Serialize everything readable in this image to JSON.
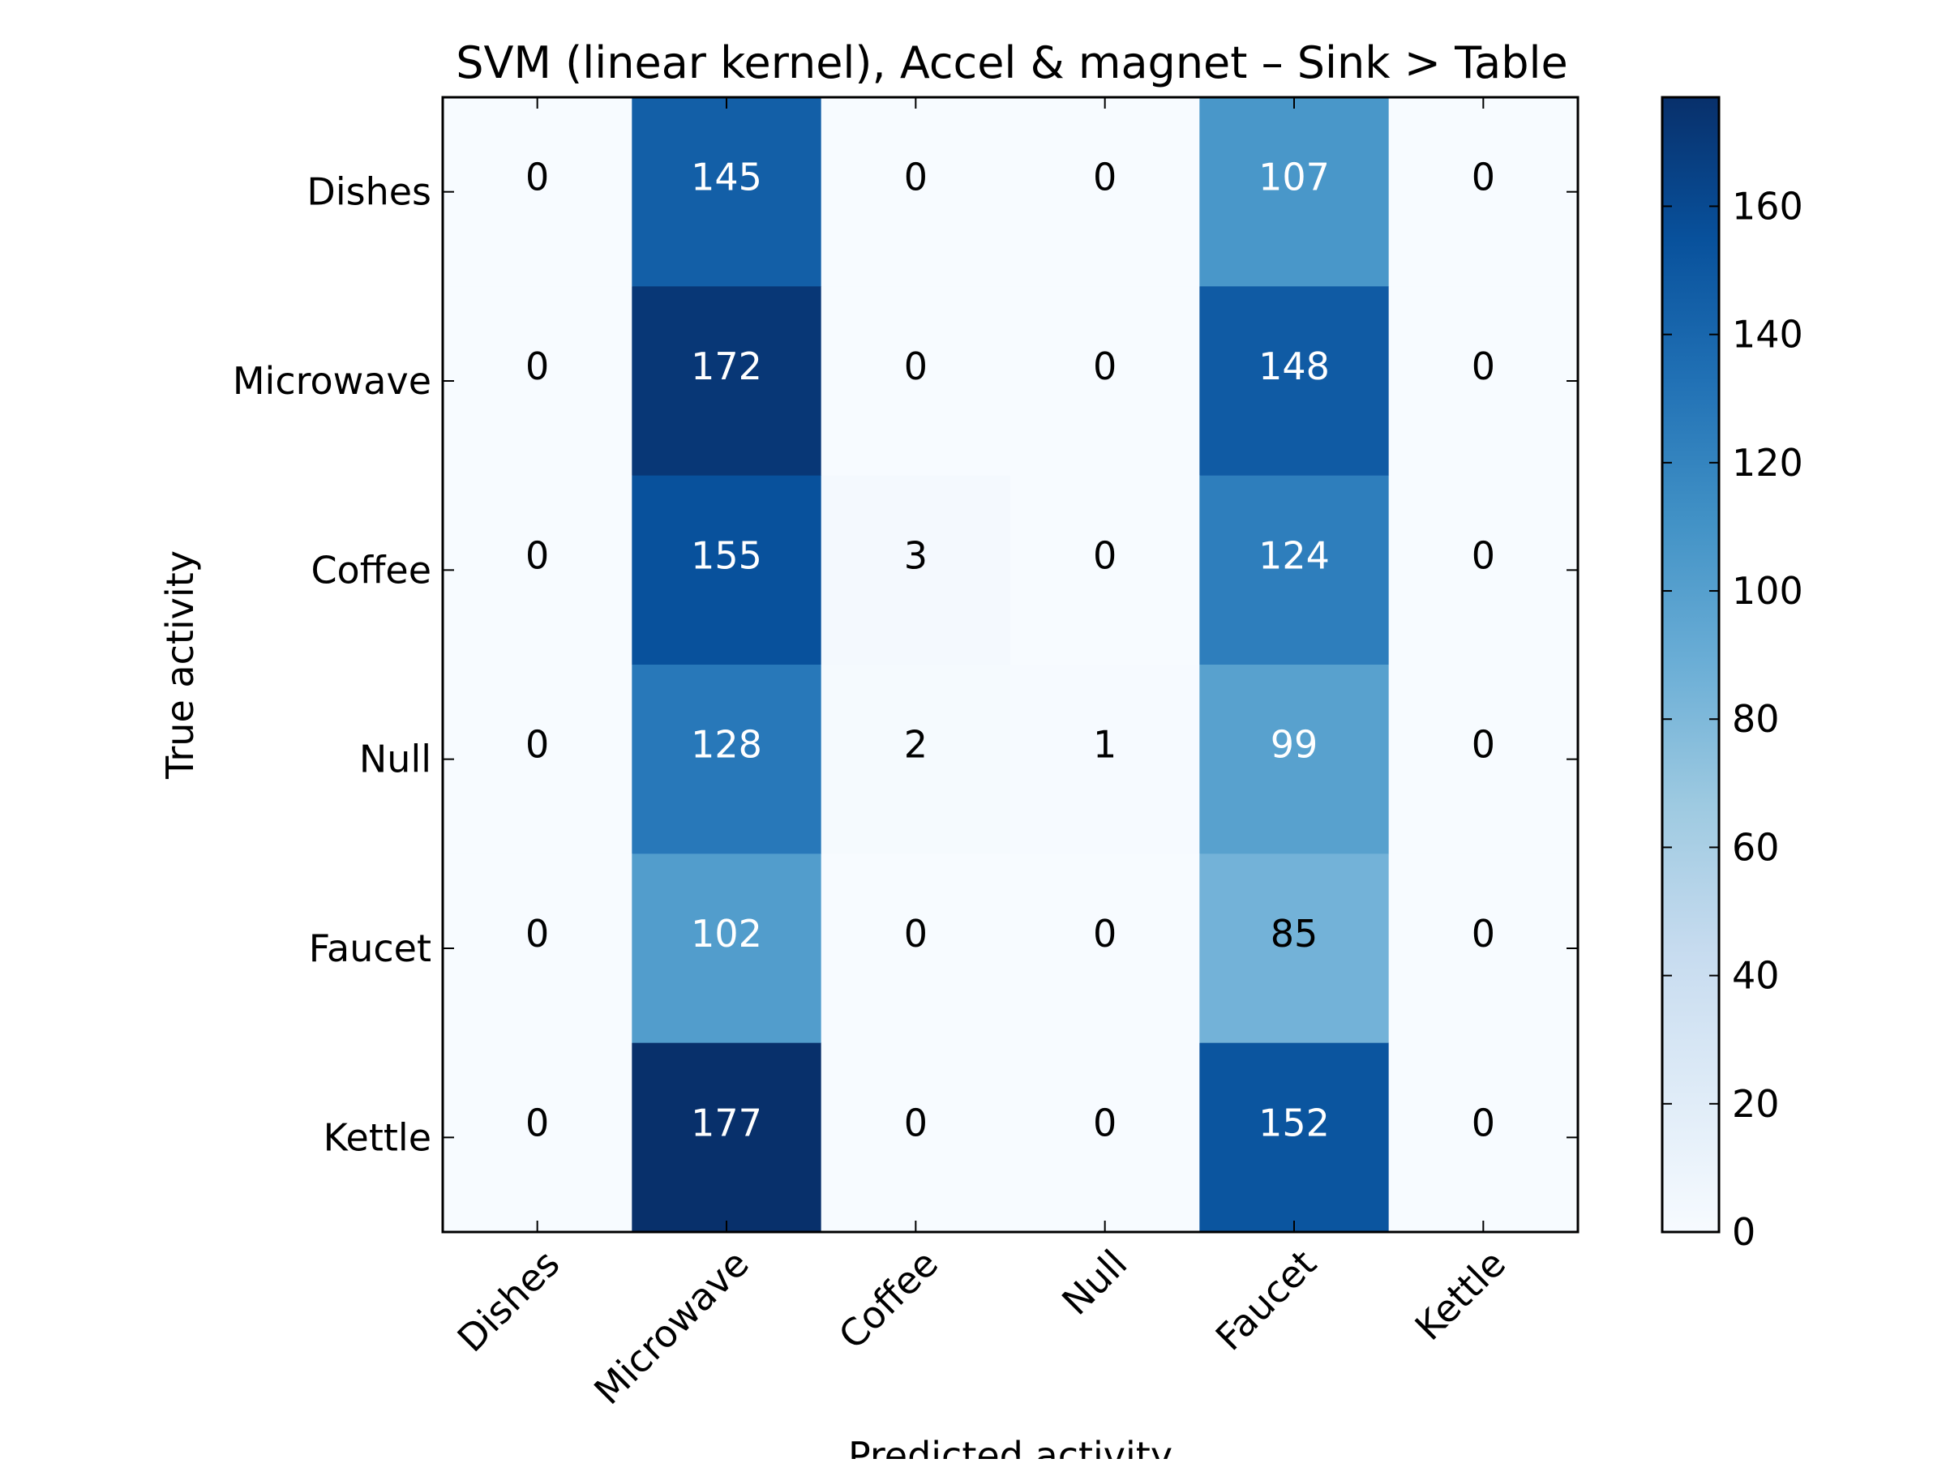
{
  "chart_data": {
    "type": "heatmap",
    "title": "SVM (linear kernel), Accel & magnet – Sink > Table",
    "xlabel": "Predicted activity",
    "ylabel": "True activity",
    "x_categories": [
      "Dishes",
      "Microwave",
      "Coffee",
      "Null",
      "Faucet",
      "Kettle"
    ],
    "y_categories": [
      "Dishes",
      "Microwave",
      "Coffee",
      "Null",
      "Faucet",
      "Kettle"
    ],
    "values": [
      [
        0,
        145,
        0,
        0,
        107,
        0
      ],
      [
        0,
        172,
        0,
        0,
        148,
        0
      ],
      [
        0,
        155,
        3,
        0,
        124,
        0
      ],
      [
        0,
        128,
        2,
        1,
        99,
        0
      ],
      [
        0,
        102,
        0,
        0,
        85,
        0
      ],
      [
        0,
        177,
        0,
        0,
        152,
        0
      ]
    ],
    "colorbar": {
      "colormap": "Blues",
      "range": [
        0,
        177
      ],
      "ticks": [
        "0",
        "20",
        "40",
        "60",
        "80",
        "100",
        "120",
        "140",
        "160"
      ]
    },
    "text_colors": {
      "light": "#ffffff",
      "dark": "#000000"
    },
    "colors": {
      "frame": "#000000",
      "background": "#ffffff"
    },
    "grid": false,
    "x_tick_rotation_deg": 45
  }
}
